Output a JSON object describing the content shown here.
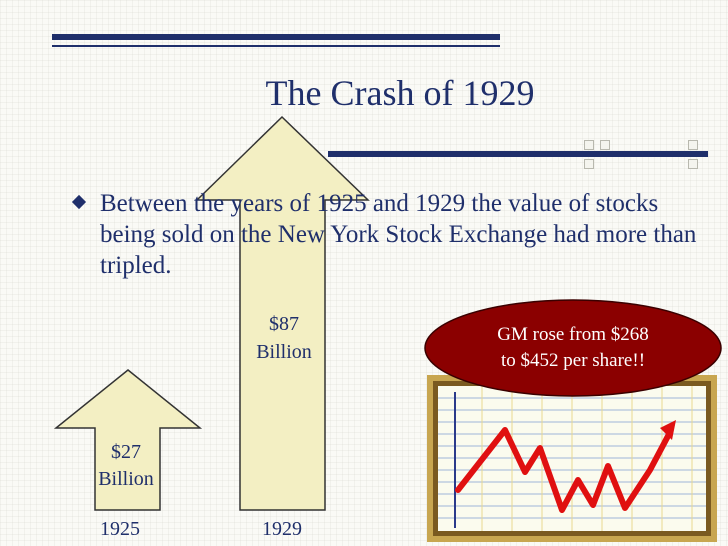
{
  "slide": {
    "title": "The Crash of 1929",
    "bullet": "Between the years of 1925 and 1929 the value of stocks being sold on the New York Stock Exchange had more than tripled."
  },
  "arrows": {
    "arrow_1925": {
      "value": "$27",
      "unit": "Billion",
      "year": "1925"
    },
    "arrow_1929": {
      "value": "$87",
      "unit": "Billion",
      "year": "1929"
    }
  },
  "callout": {
    "line1": "GM rose from $268",
    "line2": "to $452 per share!!"
  },
  "colors": {
    "accent": "#1f2f6b",
    "callout_fill": "#8b0000",
    "arrow_fill": "#f3efc3",
    "stock_line": "#e01010",
    "frame": "#c8a650"
  },
  "icons": {
    "stock_chart": "rising-stock-chart-icon"
  }
}
